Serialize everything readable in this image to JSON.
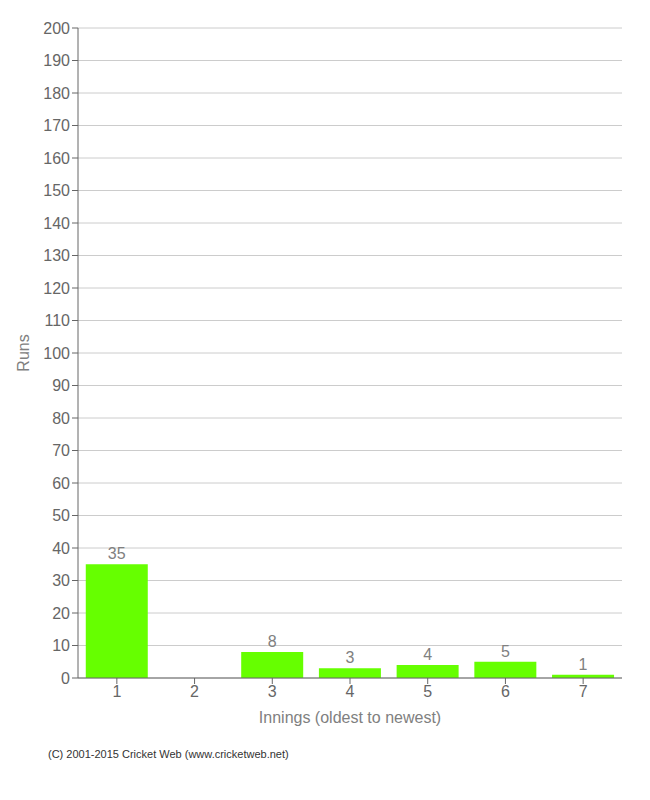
{
  "chart_data": {
    "type": "bar",
    "categories": [
      "1",
      "2",
      "3",
      "4",
      "5",
      "6",
      "7"
    ],
    "values": [
      35,
      0,
      8,
      3,
      4,
      5,
      1
    ],
    "color": "#66ff00",
    "xlabel": "Innings (oldest to newest)",
    "ylabel": "Runs",
    "ylim": [
      0,
      200
    ],
    "yticks": [
      0,
      10,
      20,
      30,
      40,
      50,
      60,
      70,
      80,
      90,
      100,
      110,
      120,
      130,
      140,
      150,
      160,
      170,
      180,
      190,
      200
    ],
    "grid": true,
    "data_labels": true,
    "annotation": "(C) 2001-2015 Cricket Web (www.cricketweb.net)"
  }
}
